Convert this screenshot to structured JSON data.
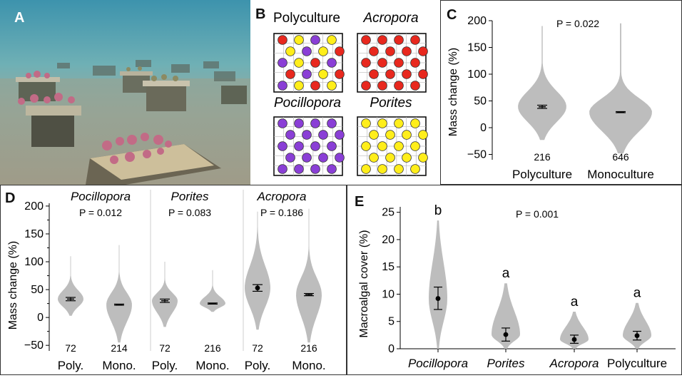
{
  "panel_letters": {
    "a": "A",
    "b": "B",
    "c": "C",
    "d": "D",
    "e": "E"
  },
  "colors": {
    "acropora": "#e8281e",
    "pocillopora": "#8a3fd6",
    "porites": "#ffee1a",
    "violin": "#bdbdbd"
  },
  "panel_b": {
    "grids": [
      {
        "title": "Polyculture",
        "italic": false,
        "rows": [
          [
            "r",
            "y",
            "p",
            "y"
          ],
          [
            "y",
            "p",
            "y",
            "r"
          ],
          [
            "p",
            "y",
            "r",
            "p"
          ],
          [
            "r",
            "p",
            "y",
            "r"
          ],
          [
            "p",
            "y",
            "r",
            "y"
          ]
        ]
      },
      {
        "title": "Acropora",
        "italic": true,
        "rows": [
          [
            "r",
            "r",
            "r",
            "r"
          ],
          [
            "r",
            "r",
            "r",
            "r"
          ],
          [
            "r",
            "r",
            "r",
            "r"
          ],
          [
            "r",
            "r",
            "r",
            "r"
          ],
          [
            "r",
            "r",
            "r",
            "r"
          ]
        ]
      },
      {
        "title": "Pocillopora",
        "italic": true,
        "rows": [
          [
            "p",
            "p",
            "p",
            "p"
          ],
          [
            "p",
            "p",
            "p",
            "p"
          ],
          [
            "p",
            "p",
            "p",
            "p"
          ],
          [
            "p",
            "p",
            "p",
            "p"
          ],
          [
            "p",
            "p",
            "p",
            "p"
          ]
        ]
      },
      {
        "title": "Porites",
        "italic": true,
        "rows": [
          [
            "y",
            "y",
            "y",
            "y"
          ],
          [
            "y",
            "y",
            "y",
            "y"
          ],
          [
            "y",
            "y",
            "y",
            "y"
          ],
          [
            "y",
            "y",
            "y",
            "y"
          ],
          [
            "y",
            "y",
            "y",
            "y"
          ]
        ]
      }
    ]
  },
  "chart_data": [
    {
      "id": "C",
      "type": "violin",
      "ylabel": "Mass change (%)",
      "ylim": [
        -60,
        200
      ],
      "yticks": [
        -50,
        0,
        50,
        100,
        150,
        200
      ],
      "annotation": "P = 0.022",
      "categories": [
        "Polyculture",
        "Monoculture"
      ],
      "groups": [
        {
          "label": "Polyculture",
          "n": "216",
          "mean": 39,
          "ci": [
            36,
            42
          ],
          "min": -23,
          "max": 190
        },
        {
          "label": "Monoculture",
          "n": "646",
          "mean": 29,
          "ci": [
            28,
            30
          ],
          "min": -48,
          "max": 195
        }
      ]
    },
    {
      "id": "D",
      "type": "violin",
      "ylabel": "Mass change (%)",
      "ylim": [
        -60,
        205
      ],
      "yticks": [
        -50,
        0,
        50,
        100,
        150,
        200
      ],
      "facets": [
        {
          "title": "Pocillopora",
          "p": "P = 0.012",
          "groups": [
            {
              "label": "Poly.",
              "n": "72",
              "mean": 33,
              "ci": [
                30,
                36
              ],
              "min": 3,
              "max": 110
            },
            {
              "label": "Mono.",
              "n": "214",
              "mean": 23,
              "ci": [
                22,
                24
              ],
              "min": -45,
              "max": 130
            }
          ]
        },
        {
          "title": "Porites",
          "p": "P = 0.083",
          "groups": [
            {
              "label": "Poly.",
              "n": "72",
              "mean": 30,
              "ci": [
                27,
                33
              ],
              "min": -17,
              "max": 100
            },
            {
              "label": "Mono.",
              "n": "216",
              "mean": 25,
              "ci": [
                24,
                26
              ],
              "min": 10,
              "max": 85
            }
          ]
        },
        {
          "title": "Acropora",
          "p": "P = 0.186",
          "groups": [
            {
              "label": "Poly.",
              "n": "72",
              "mean": 53,
              "ci": [
                47,
                59
              ],
              "min": -22,
              "max": 190
            },
            {
              "label": "Mono.",
              "n": "216",
              "mean": 41,
              "ci": [
                39,
                43
              ],
              "min": -45,
              "max": 195
            }
          ]
        }
      ]
    },
    {
      "id": "E",
      "type": "violin",
      "ylabel": "Macroalgal cover (%)",
      "ylim": [
        0,
        26
      ],
      "yticks": [
        0,
        5,
        10,
        15,
        20,
        25
      ],
      "annotation": "P = 0.001",
      "categories": [
        "Pocillopora",
        "Porites",
        "Acropora",
        "Polyculture"
      ],
      "groups": [
        {
          "label": "Pocillopora",
          "letter": "b",
          "mean": 9.2,
          "ci": [
            7.2,
            11.3
          ],
          "min": 0,
          "max": 23.5
        },
        {
          "label": "Porites",
          "letter": "a",
          "mean": 2.6,
          "ci": [
            1.4,
            3.8
          ],
          "min": 0,
          "max": 12
        },
        {
          "label": "Acropora",
          "letter": "a",
          "mean": 1.7,
          "ci": [
            1,
            2.5
          ],
          "min": 0,
          "max": 6.8
        },
        {
          "label": "Polyculture",
          "letter": "a",
          "mean": 2.4,
          "ci": [
            1.6,
            3.2
          ],
          "min": 0,
          "max": 8.4
        }
      ]
    }
  ]
}
